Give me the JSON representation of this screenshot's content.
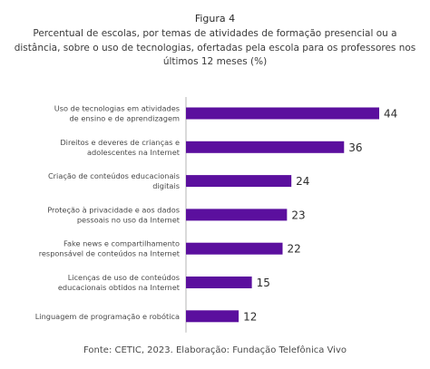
{
  "figure_label": "Figura 4",
  "chart_data": {
    "type": "bar",
    "orientation": "horizontal",
    "title": "Percentual de escolas, por temas de atividades de formação presencial ou a distância, sobre o uso de tecnologias, ofertadas pela escola para os professores nos últimos 12 meses (%)",
    "categories": [
      [
        "Uso de tecnologias em atividades",
        "de ensino e de aprendizagem"
      ],
      [
        "Direitos e deveres de crianças e",
        "adolescentes na Internet"
      ],
      [
        "Criação de conteúdos educacionais",
        "digitais"
      ],
      [
        "Proteção à privacidade e aos dados",
        "pessoais no uso da Internet"
      ],
      [
        "Fake news e compartilhamento",
        "responsável de conteúdos na Internet"
      ],
      [
        "Licenças de uso de conteúdos",
        "educacionais obtidos na Internet"
      ],
      [
        "Linguagem de programação e robótica"
      ]
    ],
    "values": [
      44,
      36,
      24,
      23,
      22,
      15,
      12
    ],
    "xlim": [
      0,
      44
    ],
    "grid": false,
    "legend": "none",
    "bar_color": "#5b0f9e",
    "value_labels": true
  },
  "source": "Fonte:  CETIC, 2023. Elaboração: Fundação Telefônica Vivo",
  "colors": {
    "text": "#3a3a3a",
    "axis": "#b5b5b5"
  }
}
